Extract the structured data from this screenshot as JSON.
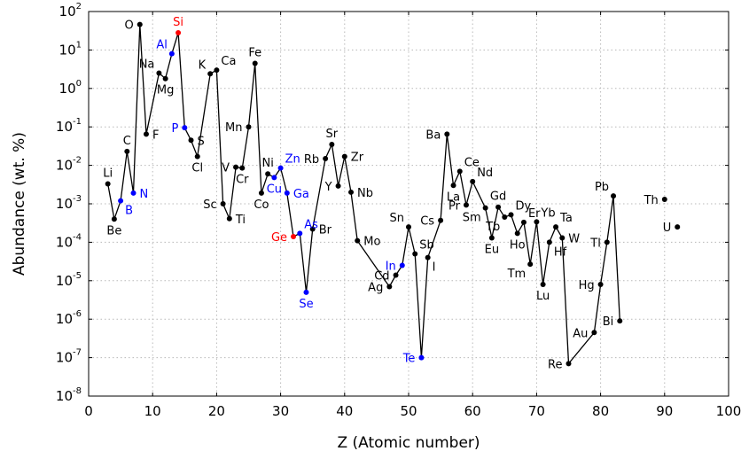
{
  "chart_data": {
    "type": "line",
    "xlabel": "Z (Atomic number)",
    "ylabel": "Abundance (wt. %)",
    "xlim": [
      0,
      100
    ],
    "ylim": [
      1e-08,
      100
    ],
    "yscale": "log",
    "grid": true,
    "x_ticks": [
      0,
      10,
      20,
      30,
      40,
      50,
      60,
      70,
      80,
      90,
      100
    ],
    "y_ticks": [
      {
        "exp": 2,
        "base": "10",
        "sup": "2"
      },
      {
        "exp": 1,
        "base": "10",
        "sup": "1"
      },
      {
        "exp": 0,
        "base": "10",
        "sup": "0"
      },
      {
        "exp": -1,
        "base": "10",
        "sup": "-1"
      },
      {
        "exp": -2,
        "base": "10",
        "sup": "-2"
      },
      {
        "exp": -3,
        "base": "10",
        "sup": "-3"
      },
      {
        "exp": -4,
        "base": "10",
        "sup": "-4"
      },
      {
        "exp": -5,
        "base": "10",
        "sup": "-5"
      },
      {
        "exp": -6,
        "base": "10",
        "sup": "-6"
      },
      {
        "exp": -7,
        "base": "10",
        "sup": "-7"
      },
      {
        "exp": -8,
        "base": "10",
        "sup": "-8"
      }
    ],
    "colors": {
      "default": "#000000",
      "metalloid": "#0000ff",
      "semiconductor": "#ff0000",
      "line": "#000000"
    },
    "series_line_points": [
      3,
      4,
      5,
      6,
      7,
      8,
      9,
      11,
      12,
      13,
      14,
      15,
      16,
      17,
      19,
      20,
      21,
      22,
      23,
      24,
      25,
      26,
      27,
      28,
      29,
      30,
      31,
      32,
      33,
      34,
      35,
      37,
      38,
      39,
      40,
      41,
      42,
      47,
      48,
      49,
      50,
      51,
      52,
      53,
      55,
      56,
      57,
      58,
      59,
      60,
      62,
      63,
      64,
      65,
      66,
      67,
      68,
      69,
      70,
      71,
      72,
      73,
      74,
      75,
      79,
      80,
      81,
      82,
      83
    ],
    "points": [
      {
        "z": 3,
        "symbol": "Li",
        "value": 0.0033,
        "color": "#000000",
        "pos": "above"
      },
      {
        "z": 4,
        "symbol": "Be",
        "value": 0.0004,
        "color": "#000000",
        "pos": "below"
      },
      {
        "z": 5,
        "symbol": "B",
        "value": 0.0012,
        "color": "#0000ff",
        "pos": "belowright"
      },
      {
        "z": 6,
        "symbol": "C",
        "value": 0.023,
        "color": "#000000",
        "pos": "above"
      },
      {
        "z": 7,
        "symbol": "N",
        "value": 0.0019,
        "color": "#0000ff",
        "pos": "right"
      },
      {
        "z": 8,
        "symbol": "O",
        "value": 46,
        "color": "#000000",
        "pos": "left"
      },
      {
        "z": 9,
        "symbol": "F",
        "value": 0.065,
        "color": "#000000",
        "pos": "right"
      },
      {
        "z": 11,
        "symbol": "Na",
        "value": 2.5,
        "color": "#000000",
        "pos": "upleft"
      },
      {
        "z": 12,
        "symbol": "Mg",
        "value": 1.8,
        "color": "#000000",
        "pos": "below"
      },
      {
        "z": 13,
        "symbol": "Al",
        "value": 8,
        "color": "#0000ff",
        "pos": "upleft"
      },
      {
        "z": 14,
        "symbol": "Si",
        "value": 28,
        "color": "#ff0000",
        "pos": "above"
      },
      {
        "z": 15,
        "symbol": "P",
        "value": 0.095,
        "color": "#0000ff",
        "pos": "left"
      },
      {
        "z": 16,
        "symbol": "S",
        "value": 0.045,
        "color": "#000000",
        "pos": "right"
      },
      {
        "z": 17,
        "symbol": "Cl",
        "value": 0.017,
        "color": "#000000",
        "pos": "below"
      },
      {
        "z": 19,
        "symbol": "K",
        "value": 2.4,
        "color": "#000000",
        "pos": "upleft"
      },
      {
        "z": 20,
        "symbol": "Ca",
        "value": 3,
        "color": "#000000",
        "pos": "upright"
      },
      {
        "z": 21,
        "symbol": "Sc",
        "value": 0.001,
        "color": "#000000",
        "pos": "left"
      },
      {
        "z": 22,
        "symbol": "Ti",
        "value": 0.00041,
        "color": "#000000",
        "pos": "right"
      },
      {
        "z": 23,
        "symbol": "V",
        "value": 0.009,
        "color": "#000000",
        "pos": "left"
      },
      {
        "z": 24,
        "symbol": "Cr",
        "value": 0.0085,
        "color": "#000000",
        "pos": "below"
      },
      {
        "z": 25,
        "symbol": "Mn",
        "value": 0.1,
        "color": "#000000",
        "pos": "left"
      },
      {
        "z": 26,
        "symbol": "Fe",
        "value": 4.5,
        "color": "#000000",
        "pos": "above"
      },
      {
        "z": 27,
        "symbol": "Co",
        "value": 0.0019,
        "color": "#000000",
        "pos": "below"
      },
      {
        "z": 28,
        "symbol": "Ni",
        "value": 0.006,
        "color": "#000000",
        "pos": "above"
      },
      {
        "z": 29,
        "symbol": "Cu",
        "value": 0.0048,
        "color": "#0000ff",
        "pos": "below"
      },
      {
        "z": 30,
        "symbol": "Zn",
        "value": 0.0085,
        "color": "#0000ff",
        "pos": "upright"
      },
      {
        "z": 31,
        "symbol": "Ga",
        "value": 0.0019,
        "color": "#0000ff",
        "pos": "right"
      },
      {
        "z": 32,
        "symbol": "Ge",
        "value": 0.00014,
        "color": "#ff0000",
        "pos": "left"
      },
      {
        "z": 33,
        "symbol": "As",
        "value": 0.00017,
        "color": "#0000ff",
        "pos": "upright"
      },
      {
        "z": 34,
        "symbol": "Se",
        "value": 5e-06,
        "color": "#0000ff",
        "pos": "below"
      },
      {
        "z": 35,
        "symbol": "Br",
        "value": 0.00022,
        "color": "#000000",
        "pos": "right"
      },
      {
        "z": 37,
        "symbol": "Rb",
        "value": 0.015,
        "color": "#000000",
        "pos": "left"
      },
      {
        "z": 38,
        "symbol": "Sr",
        "value": 0.035,
        "color": "#000000",
        "pos": "above"
      },
      {
        "z": 39,
        "symbol": "Y",
        "value": 0.0029,
        "color": "#000000",
        "pos": "left"
      },
      {
        "z": 40,
        "symbol": "Zr",
        "value": 0.017,
        "color": "#000000",
        "pos": "right"
      },
      {
        "z": 41,
        "symbol": "Nb",
        "value": 0.002,
        "color": "#000000",
        "pos": "right"
      },
      {
        "z": 42,
        "symbol": "Mo",
        "value": 0.00011,
        "color": "#000000",
        "pos": "right"
      },
      {
        "z": 47,
        "symbol": "Ag",
        "value": 7e-06,
        "color": "#000000",
        "pos": "left"
      },
      {
        "z": 48,
        "symbol": "Cd",
        "value": 1.4e-05,
        "color": "#000000",
        "pos": "left"
      },
      {
        "z": 49,
        "symbol": "In",
        "value": 2.5e-05,
        "color": "#0000ff",
        "pos": "left"
      },
      {
        "z": 50,
        "symbol": "Sn",
        "value": 0.00025,
        "color": "#000000",
        "pos": "upleft"
      },
      {
        "z": 51,
        "symbol": "Sb",
        "value": 5e-05,
        "color": "#000000",
        "pos": "upright"
      },
      {
        "z": 52,
        "symbol": "Te",
        "value": 1e-07,
        "color": "#0000ff",
        "pos": "left"
      },
      {
        "z": 53,
        "symbol": "I",
        "value": 4e-05,
        "color": "#000000",
        "pos": "belowright"
      },
      {
        "z": 55,
        "symbol": "Cs",
        "value": 0.00037,
        "color": "#000000",
        "pos": "left"
      },
      {
        "z": 56,
        "symbol": "Ba",
        "value": 0.065,
        "color": "#000000",
        "pos": "left"
      },
      {
        "z": 57,
        "symbol": "La",
        "value": 0.003,
        "color": "#000000",
        "pos": "below"
      },
      {
        "z": 58,
        "symbol": "Ce",
        "value": 0.007,
        "color": "#000000",
        "pos": "upright"
      },
      {
        "z": 59,
        "symbol": "Pr",
        "value": 0.00093,
        "color": "#000000",
        "pos": "left"
      },
      {
        "z": 60,
        "symbol": "Nd",
        "value": 0.0038,
        "color": "#000000",
        "pos": "upright"
      },
      {
        "z": 62,
        "symbol": "Sm",
        "value": 0.00078,
        "color": "#000000",
        "pos": "belowleft"
      },
      {
        "z": 63,
        "symbol": "Eu",
        "value": 0.00013,
        "color": "#000000",
        "pos": "below"
      },
      {
        "z": 64,
        "symbol": "Gd",
        "value": 0.00082,
        "color": "#000000",
        "pos": "above"
      },
      {
        "z": 65,
        "symbol": "Tb",
        "value": 0.00045,
        "color": "#000000",
        "pos": "belowleft"
      },
      {
        "z": 66,
        "symbol": "Dy",
        "value": 0.00052,
        "color": "#000000",
        "pos": "upright"
      },
      {
        "z": 67,
        "symbol": "Ho",
        "value": 0.00017,
        "color": "#000000",
        "pos": "below"
      },
      {
        "z": 68,
        "symbol": "Er",
        "value": 0.00033,
        "color": "#000000",
        "pos": "upright"
      },
      {
        "z": 69,
        "symbol": "Tm",
        "value": 2.7e-05,
        "color": "#000000",
        "pos": "belowleft"
      },
      {
        "z": 70,
        "symbol": "Yb",
        "value": 0.00034,
        "color": "#000000",
        "pos": "upright"
      },
      {
        "z": 71,
        "symbol": "Lu",
        "value": 8e-06,
        "color": "#000000",
        "pos": "below"
      },
      {
        "z": 72,
        "symbol": "Hf",
        "value": 0.0001,
        "color": "#000000",
        "pos": "belowright"
      },
      {
        "z": 73,
        "symbol": "Ta",
        "value": 0.00025,
        "color": "#000000",
        "pos": "upright"
      },
      {
        "z": 74,
        "symbol": "W",
        "value": 0.00013,
        "color": "#000000",
        "pos": "right"
      },
      {
        "z": 75,
        "symbol": "Re",
        "value": 7e-08,
        "color": "#000000",
        "pos": "left"
      },
      {
        "z": 79,
        "symbol": "Au",
        "value": 4.5e-07,
        "color": "#000000",
        "pos": "left"
      },
      {
        "z": 80,
        "symbol": "Hg",
        "value": 8e-06,
        "color": "#000000",
        "pos": "left"
      },
      {
        "z": 81,
        "symbol": "Tl",
        "value": 0.0001,
        "color": "#000000",
        "pos": "left"
      },
      {
        "z": 82,
        "symbol": "Pb",
        "value": 0.0016,
        "color": "#000000",
        "pos": "upleft"
      },
      {
        "z": 83,
        "symbol": "Bi",
        "value": 9e-07,
        "color": "#000000",
        "pos": "left"
      },
      {
        "z": 90,
        "symbol": "Th",
        "value": 0.0013,
        "color": "#000000",
        "pos": "left"
      },
      {
        "z": 92,
        "symbol": "U",
        "value": 0.00025,
        "color": "#000000",
        "pos": "left"
      }
    ]
  }
}
